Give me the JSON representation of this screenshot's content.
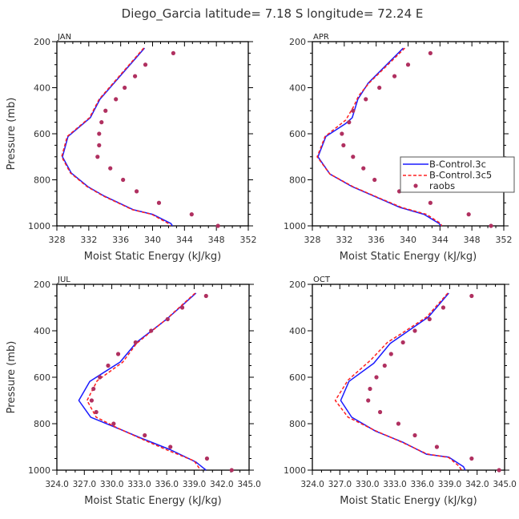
{
  "title": "Diego_Garcia  latitude= 7.18 S longitude= 72.24 E",
  "colors": {
    "model_a": "#1a1aff",
    "model_b": "#ff2020",
    "raobs": "#b03060"
  },
  "legend": {
    "placement": "inside-right of APR panel",
    "entries": [
      "B-Control.3c",
      "B-Control.3c5",
      "raobs"
    ]
  },
  "chart_data": [
    {
      "type": "line",
      "panel_label": "JAN",
      "xlabel": "Moist Static Energy (kJ/kg)",
      "ylabel": "Pressure (mb)",
      "xlim": [
        328,
        352
      ],
      "xticks": [
        328,
        332,
        336,
        340,
        344,
        348,
        352
      ],
      "xtick_labels": [
        "328",
        "332",
        "336",
        "340",
        "344",
        "348",
        "352"
      ],
      "ylim": [
        1000,
        200
      ],
      "yticks": [
        200,
        400,
        600,
        800,
        1000
      ],
      "series": [
        {
          "name": "B-Control.3c",
          "style": "solid",
          "p": [
            228,
            450,
            530,
            612,
            700,
            770,
            830,
            870,
            930,
            950,
            990,
            1000
          ],
          "mse": [
            339.0,
            333.4,
            332.2,
            329.4,
            328.7,
            329.8,
            331.9,
            333.9,
            337.6,
            340.0,
            342.3,
            342.5
          ]
        },
        {
          "name": "B-Control.3c5",
          "style": "dashed",
          "p": [
            228,
            450,
            530,
            612,
            700,
            770,
            830,
            870,
            930,
            950,
            990,
            1000
          ],
          "mse": [
            338.9,
            333.3,
            332.1,
            329.3,
            328.6,
            329.7,
            331.8,
            333.8,
            337.5,
            339.9,
            342.0,
            342.2
          ]
        },
        {
          "name": "raobs",
          "style": "markers",
          "p": [
            250,
            300,
            350,
            400,
            450,
            500,
            550,
            600,
            650,
            700,
            750,
            800,
            850,
            900,
            950,
            1000
          ],
          "mse": [
            342.6,
            339.1,
            337.8,
            336.5,
            335.4,
            334.1,
            333.6,
            333.3,
            333.3,
            333.1,
            334.7,
            336.3,
            338.0,
            340.8,
            344.9,
            348.2
          ]
        }
      ]
    },
    {
      "type": "line",
      "panel_label": "APR",
      "xlabel": "Moist Static Energy (kJ/kg)",
      "ylabel": "",
      "xlim": [
        328,
        352
      ],
      "xticks": [
        328,
        332,
        336,
        340,
        344,
        348,
        352
      ],
      "xtick_labels": [
        "328",
        "332",
        "336",
        "340",
        "344",
        "348",
        "352"
      ],
      "ylim": [
        1000,
        200
      ],
      "yticks": [
        200,
        400,
        600,
        800,
        1000
      ],
      "series": [
        {
          "name": "B-Control.3c",
          "style": "solid",
          "p": [
            228,
            380,
            450,
            530,
            555,
            612,
            700,
            775,
            830,
            875,
            920,
            950,
            990,
            1000
          ],
          "mse": [
            339.4,
            335.0,
            333.7,
            333.0,
            332.2,
            329.7,
            328.7,
            330.2,
            333.0,
            336.0,
            339.0,
            342.0,
            343.9,
            344.1
          ]
        },
        {
          "name": "B-Control.3c5",
          "style": "dashed",
          "p": [
            228,
            380,
            435,
            480,
            540,
            612,
            700,
            775,
            830,
            875,
            920,
            950,
            990,
            1000
          ],
          "mse": [
            339.6,
            335.1,
            333.8,
            333.2,
            332.2,
            329.6,
            328.6,
            330.2,
            333.1,
            336.1,
            339.2,
            342.3,
            344.1,
            344.2
          ]
        },
        {
          "name": "raobs",
          "style": "markers",
          "p": [
            250,
            300,
            350,
            400,
            450,
            500,
            550,
            600,
            650,
            700,
            750,
            800,
            850,
            900,
            950,
            1000
          ],
          "mse": [
            342.8,
            340.0,
            338.3,
            336.4,
            334.7,
            333.1,
            332.6,
            331.7,
            331.9,
            333.1,
            334.4,
            335.8,
            338.9,
            342.8,
            347.6,
            350.4
          ]
        }
      ]
    },
    {
      "type": "line",
      "panel_label": "JUL",
      "xlabel": "Moist Static Energy (kJ/kg)",
      "ylabel": "Pressure (mb)",
      "xlim": [
        324,
        345
      ],
      "xticks": [
        324,
        327,
        330,
        333,
        336,
        339,
        342,
        345
      ],
      "xtick_labels": [
        "324.0",
        "327.0",
        "330.0",
        "333.0",
        "336.0",
        "339.0",
        "342.0",
        "345.0"
      ],
      "ylim": [
        1000,
        200
      ],
      "yticks": [
        200,
        400,
        600,
        800,
        1000
      ],
      "series": [
        {
          "name": "B-Control.3c",
          "style": "solid",
          "p": [
            238,
            350,
            450,
            535,
            618,
            700,
            772,
            822,
            862,
            912,
            965,
            1000
          ],
          "mse": [
            339.2,
            336.0,
            332.7,
            330.9,
            327.6,
            326.4,
            327.7,
            330.8,
            333.2,
            336.4,
            339.2,
            340.3
          ]
        },
        {
          "name": "B-Control.3c5",
          "style": "dashed",
          "p": [
            238,
            352,
            455,
            535,
            615,
            700,
            772,
            818,
            870,
            916,
            960,
            1000
          ],
          "mse": [
            339.1,
            335.9,
            332.7,
            331.2,
            328.4,
            327.3,
            328.3,
            330.6,
            333.5,
            336.2,
            339.0,
            339.7
          ]
        },
        {
          "name": "raobs",
          "style": "markers",
          "p": [
            250,
            300,
            350,
            400,
            450,
            500,
            550,
            600,
            650,
            700,
            750,
            800,
            850,
            900,
            950,
            1000
          ],
          "mse": [
            340.3,
            337.7,
            336.1,
            334.3,
            332.6,
            330.7,
            329.6,
            328.7,
            328.0,
            327.8,
            328.3,
            330.2,
            333.6,
            336.4,
            340.4,
            343.1
          ]
        }
      ]
    },
    {
      "type": "line",
      "panel_label": "OCT",
      "xlabel": "Moist Static Energy (kJ/kg)",
      "ylabel": "",
      "xlim": [
        324,
        345
      ],
      "xticks": [
        324,
        327,
        330,
        333,
        336,
        339,
        342,
        345
      ],
      "xtick_labels": [
        "324.0",
        "327.0",
        "330.0",
        "333.0",
        "336.0",
        "339.0",
        "342.0",
        "345.0"
      ],
      "ylim": [
        1000,
        200
      ],
      "yticks": [
        200,
        400,
        600,
        800,
        1000
      ],
      "series": [
        {
          "name": "B-Control.3c",
          "style": "solid",
          "p": [
            238,
            340,
            400,
            455,
            540,
            618,
            700,
            772,
            832,
            880,
            932,
            944,
            985,
            1000
          ],
          "mse": [
            338.9,
            336.7,
            334.5,
            332.5,
            330.7,
            328.0,
            327.1,
            328.3,
            330.9,
            333.9,
            336.5,
            338.9,
            340.5,
            340.7
          ]
        },
        {
          "name": "B-Control.3c5",
          "style": "dashed",
          "p": [
            238,
            340,
            400,
            450,
            525,
            612,
            700,
            772,
            832,
            880,
            930,
            946,
            982,
            1000
          ],
          "mse": [
            338.8,
            336.5,
            334.2,
            332.2,
            330.4,
            327.9,
            326.5,
            327.9,
            331.0,
            333.8,
            336.5,
            338.9,
            340.0,
            340.3
          ]
        },
        {
          "name": "raobs",
          "style": "markers",
          "p": [
            250,
            300,
            350,
            400,
            450,
            500,
            550,
            600,
            650,
            700,
            750,
            800,
            850,
            900,
            950,
            1000
          ],
          "mse": [
            341.4,
            338.3,
            336.8,
            335.2,
            333.9,
            332.6,
            331.9,
            331.0,
            330.3,
            330.1,
            331.4,
            333.4,
            335.2,
            337.6,
            341.4,
            344.4
          ]
        }
      ]
    }
  ]
}
